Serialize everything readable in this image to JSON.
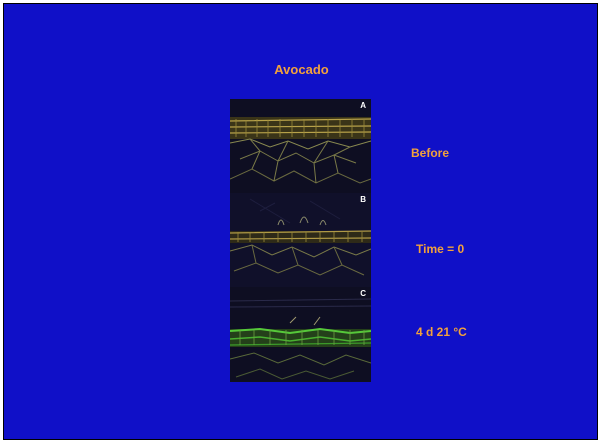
{
  "slide": {
    "title": "Avocado",
    "background_color": "#1010c8",
    "text_color": "#f2a13c"
  },
  "micrograph": {
    "panels": [
      {
        "letter": "A",
        "stage_label": "Before"
      },
      {
        "letter": "B",
        "stage_label": "Time = 0"
      },
      {
        "letter": "C",
        "stage_label": "4 d 21 °C"
      }
    ]
  }
}
